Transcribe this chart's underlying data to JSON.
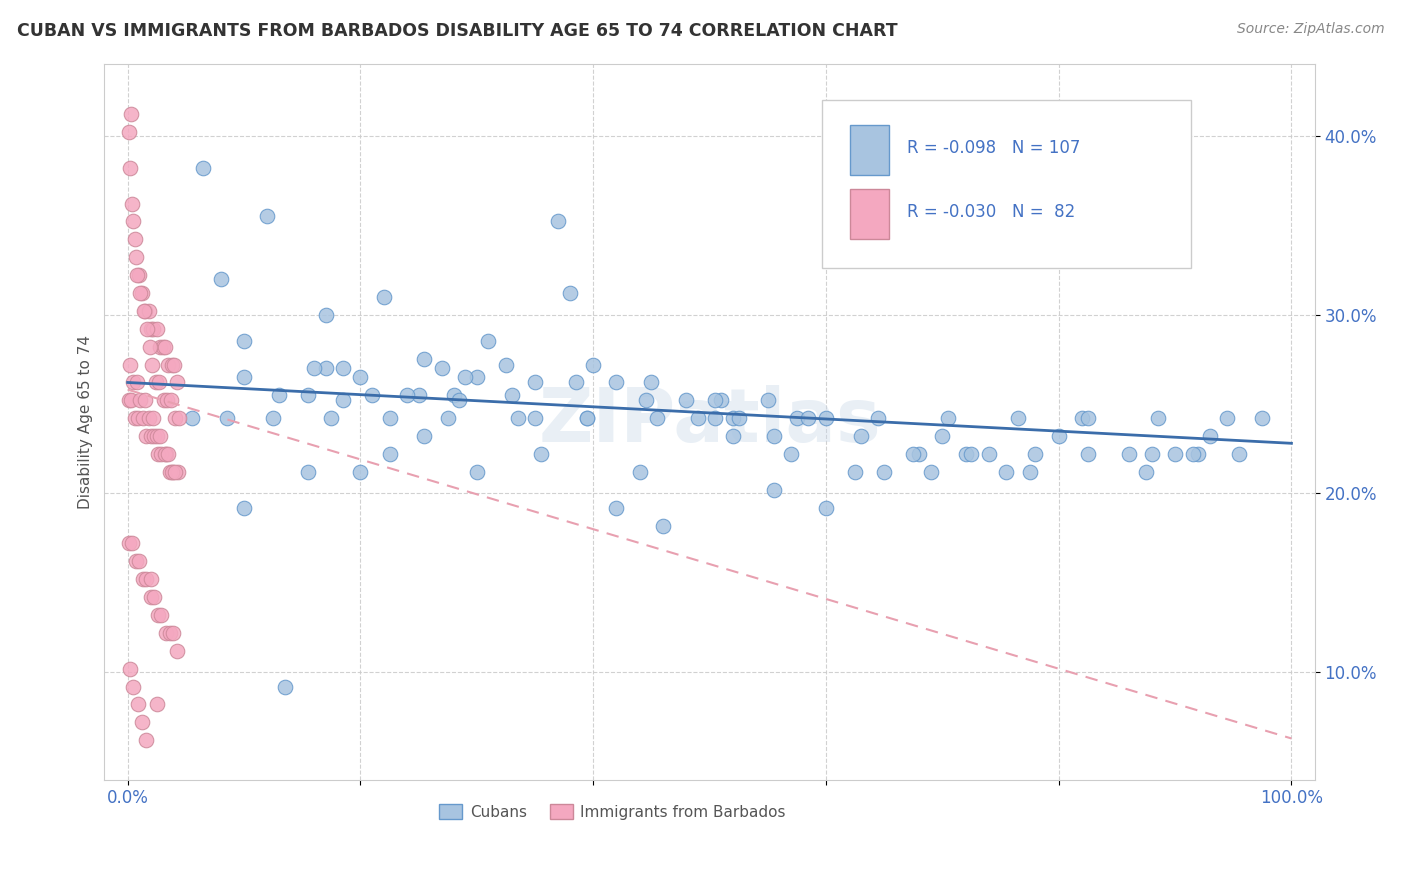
{
  "title": "CUBAN VS IMMIGRANTS FROM BARBADOS DISABILITY AGE 65 TO 74 CORRELATION CHART",
  "source": "Source: ZipAtlas.com",
  "ylabel": "Disability Age 65 to 74",
  "xlim": [
    -0.02,
    1.02
  ],
  "ylim": [
    0.04,
    0.44
  ],
  "xticks": [
    0.0,
    0.2,
    0.4,
    0.6,
    0.8,
    1.0
  ],
  "xticklabels": [
    "0.0%",
    "",
    "",
    "",
    "",
    "100.0%"
  ],
  "yticks": [
    0.1,
    0.2,
    0.3,
    0.4
  ],
  "yticklabels": [
    "10.0%",
    "20.0%",
    "30.0%",
    "40.0%"
  ],
  "blue_dot_color": "#a8c4e0",
  "blue_dot_edge": "#6699cc",
  "pink_dot_color": "#f4a8c0",
  "pink_dot_edge": "#cc8899",
  "blue_line_color": "#3b6daa",
  "pink_line_color": "#e8a0b0",
  "axis_color": "#4472c4",
  "grid_color": "#cccccc",
  "legend_label_blue": "Cubans",
  "legend_label_pink": "Immigrants from Barbados",
  "watermark": "ZIPatlas",
  "blue_line_x": [
    0.0,
    1.0
  ],
  "blue_line_y": [
    0.262,
    0.228
  ],
  "pink_line_x": [
    0.0,
    1.0
  ],
  "pink_line_y": [
    0.258,
    0.063
  ],
  "blue_scatter_x": [
    0.065,
    0.17,
    0.12,
    0.08,
    0.37,
    0.22,
    0.17,
    0.1,
    0.1,
    0.13,
    0.16,
    0.155,
    0.21,
    0.185,
    0.25,
    0.2,
    0.24,
    0.27,
    0.3,
    0.31,
    0.29,
    0.255,
    0.28,
    0.33,
    0.35,
    0.38,
    0.4,
    0.42,
    0.45,
    0.35,
    0.395,
    0.48,
    0.51,
    0.52,
    0.49,
    0.505,
    0.55,
    0.575,
    0.6,
    0.52,
    0.57,
    0.63,
    0.68,
    0.7,
    0.72,
    0.65,
    0.69,
    0.74,
    0.78,
    0.8,
    0.755,
    0.82,
    0.86,
    0.88,
    0.9,
    0.92,
    0.93,
    0.955,
    0.975,
    0.135,
    0.1,
    0.2,
    0.3,
    0.42,
    0.44,
    0.46,
    0.555,
    0.6,
    0.355,
    0.255,
    0.155,
    0.185,
    0.225,
    0.285,
    0.325,
    0.385,
    0.445,
    0.505,
    0.555,
    0.625,
    0.675,
    0.725,
    0.775,
    0.825,
    0.875,
    0.915,
    0.055,
    0.085,
    0.125,
    0.175,
    0.225,
    0.275,
    0.335,
    0.395,
    0.455,
    0.525,
    0.585,
    0.645,
    0.705,
    0.765,
    0.825,
    0.885,
    0.945
  ],
  "blue_scatter_y": [
    0.382,
    0.27,
    0.355,
    0.32,
    0.352,
    0.31,
    0.3,
    0.285,
    0.265,
    0.255,
    0.27,
    0.255,
    0.255,
    0.27,
    0.255,
    0.265,
    0.255,
    0.27,
    0.265,
    0.285,
    0.265,
    0.275,
    0.255,
    0.255,
    0.262,
    0.312,
    0.272,
    0.262,
    0.262,
    0.242,
    0.242,
    0.252,
    0.252,
    0.242,
    0.242,
    0.242,
    0.252,
    0.242,
    0.242,
    0.232,
    0.222,
    0.232,
    0.222,
    0.232,
    0.222,
    0.212,
    0.212,
    0.222,
    0.222,
    0.232,
    0.212,
    0.242,
    0.222,
    0.222,
    0.222,
    0.222,
    0.232,
    0.222,
    0.242,
    0.092,
    0.192,
    0.212,
    0.212,
    0.192,
    0.212,
    0.182,
    0.202,
    0.192,
    0.222,
    0.232,
    0.212,
    0.252,
    0.222,
    0.252,
    0.272,
    0.262,
    0.252,
    0.252,
    0.232,
    0.212,
    0.222,
    0.222,
    0.212,
    0.222,
    0.212,
    0.222,
    0.242,
    0.242,
    0.242,
    0.242,
    0.242,
    0.242,
    0.242,
    0.242,
    0.242,
    0.242,
    0.242,
    0.242,
    0.242,
    0.242,
    0.242,
    0.242,
    0.242
  ],
  "pink_scatter_x": [
    0.003,
    0.005,
    0.007,
    0.01,
    0.012,
    0.015,
    0.018,
    0.02,
    0.022,
    0.025,
    0.028,
    0.03,
    0.032,
    0.035,
    0.038,
    0.04,
    0.042,
    0.001,
    0.002,
    0.004,
    0.006,
    0.008,
    0.011,
    0.014,
    0.017,
    0.019,
    0.021,
    0.024,
    0.027,
    0.031,
    0.034,
    0.037,
    0.041,
    0.044,
    0.001,
    0.003,
    0.006,
    0.009,
    0.013,
    0.016,
    0.02,
    0.023,
    0.026,
    0.029,
    0.033,
    0.036,
    0.039,
    0.043,
    0.002,
    0.005,
    0.008,
    0.011,
    0.015,
    0.018,
    0.022,
    0.025,
    0.028,
    0.032,
    0.035,
    0.038,
    0.041,
    0.001,
    0.004,
    0.007,
    0.01,
    0.013,
    0.016,
    0.02,
    0.023,
    0.026,
    0.029,
    0.033,
    0.036,
    0.039,
    0.042,
    0.002,
    0.005,
    0.009,
    0.012,
    0.016,
    0.02,
    0.025
  ],
  "pink_scatter_y": [
    0.412,
    0.352,
    0.332,
    0.322,
    0.312,
    0.302,
    0.302,
    0.292,
    0.292,
    0.292,
    0.282,
    0.282,
    0.282,
    0.272,
    0.272,
    0.272,
    0.262,
    0.402,
    0.382,
    0.362,
    0.342,
    0.322,
    0.312,
    0.302,
    0.292,
    0.282,
    0.272,
    0.262,
    0.262,
    0.252,
    0.252,
    0.252,
    0.242,
    0.242,
    0.252,
    0.252,
    0.242,
    0.242,
    0.242,
    0.232,
    0.232,
    0.232,
    0.222,
    0.222,
    0.222,
    0.212,
    0.212,
    0.212,
    0.272,
    0.262,
    0.262,
    0.252,
    0.252,
    0.242,
    0.242,
    0.232,
    0.232,
    0.222,
    0.222,
    0.212,
    0.212,
    0.172,
    0.172,
    0.162,
    0.162,
    0.152,
    0.152,
    0.142,
    0.142,
    0.132,
    0.132,
    0.122,
    0.122,
    0.122,
    0.112,
    0.102,
    0.092,
    0.082,
    0.072,
    0.062,
    0.152,
    0.082
  ]
}
